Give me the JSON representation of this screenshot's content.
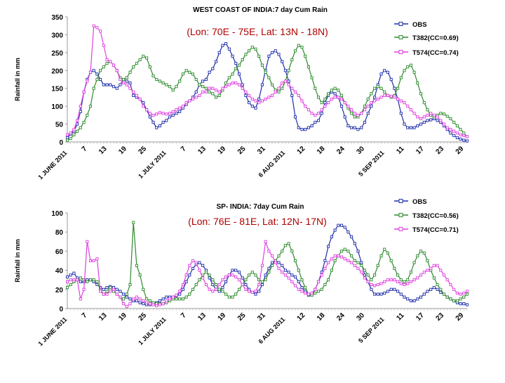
{
  "chart_data": [
    {
      "type": "line",
      "title": "WEST COAST OF INDIA:7 day Cum Rain",
      "subtitle": "(Lon: 70E - 75E, Lat: 13N - 18N)",
      "ylabel": "Rainfall in mm",
      "xlabel": "",
      "ylim": [
        0,
        350
      ],
      "yticks": [
        0,
        50,
        100,
        150,
        200,
        250,
        300,
        350
      ],
      "x": [
        0,
        1,
        2,
        3,
        4,
        5,
        6,
        7,
        8,
        9,
        10,
        11,
        12,
        13,
        14,
        15,
        16,
        17,
        18,
        19,
        20,
        21,
        22,
        23,
        24,
        25,
        26,
        27,
        28,
        29,
        30,
        31,
        32,
        33,
        34,
        35,
        36,
        37,
        38,
        39,
        40,
        41,
        42,
        43,
        44,
        45,
        46,
        47,
        48,
        49,
        50,
        51,
        52,
        53,
        54,
        55,
        56,
        57,
        58,
        59,
        60,
        61,
        62,
        63,
        64,
        65,
        66,
        67,
        68,
        69,
        70,
        71,
        72,
        73,
        74,
        75,
        76,
        77,
        78,
        79,
        80,
        81,
        82,
        83,
        84,
        85,
        86,
        87,
        88,
        89,
        90,
        91,
        92,
        93,
        94,
        95,
        96,
        97,
        98,
        99,
        100,
        101,
        102,
        103,
        104,
        105,
        106,
        107,
        108,
        109,
        110,
        111,
        112,
        113,
        114,
        115,
        116,
        117,
        118,
        119,
        120,
        121
      ],
      "xticks": [
        {
          "x": 0,
          "label": "1 JUNE 2011",
          "major": true
        },
        {
          "x": 6,
          "label": "7"
        },
        {
          "x": 12,
          "label": "13"
        },
        {
          "x": 18,
          "label": "19"
        },
        {
          "x": 24,
          "label": "25"
        },
        {
          "x": 30,
          "label": "1 JULY 2011",
          "major": true
        },
        {
          "x": 36,
          "label": "7"
        },
        {
          "x": 42,
          "label": "13"
        },
        {
          "x": 48,
          "label": "19"
        },
        {
          "x": 54,
          "label": "25"
        },
        {
          "x": 60,
          "label": "31"
        },
        {
          "x": 66,
          "label": "6 AUG 2011",
          "major": true
        },
        {
          "x": 72,
          "label": "12"
        },
        {
          "x": 78,
          "label": "18"
        },
        {
          "x": 84,
          "label": "24"
        },
        {
          "x": 90,
          "label": "30"
        },
        {
          "x": 96,
          "label": "5 SEP 2011",
          "major": true
        },
        {
          "x": 102,
          "label": "11"
        },
        {
          "x": 108,
          "label": "17"
        },
        {
          "x": 114,
          "label": "23"
        },
        {
          "x": 120,
          "label": "29"
        }
      ],
      "legend_position": "top-right",
      "grid": false,
      "series": [
        {
          "name": "OBS",
          "color": "#1f2fa8",
          "marker": "square",
          "values": [
            12,
            22,
            30,
            50,
            85,
            140,
            175,
            195,
            200,
            190,
            175,
            160,
            160,
            160,
            155,
            150,
            160,
            175,
            170,
            165,
            130,
            125,
            120,
            110,
            90,
            70,
            55,
            40,
            45,
            55,
            60,
            70,
            75,
            80,
            85,
            95,
            105,
            115,
            125,
            140,
            160,
            170,
            175,
            195,
            205,
            225,
            250,
            270,
            275,
            260,
            240,
            220,
            190,
            160,
            130,
            110,
            100,
            95,
            120,
            160,
            200,
            240,
            250,
            255,
            245,
            225,
            200,
            170,
            130,
            70,
            40,
            35,
            35,
            40,
            45,
            55,
            60,
            80,
            110,
            130,
            140,
            135,
            125,
            100,
            70,
            45,
            40,
            40,
            35,
            40,
            55,
            80,
            100,
            125,
            160,
            190,
            200,
            195,
            175,
            150,
            120,
            80,
            50,
            40,
            40,
            40,
            45,
            50,
            55,
            60,
            62,
            65,
            60,
            55,
            45,
            35,
            25,
            18,
            12,
            8,
            5,
            3
          ]
        },
        {
          "name": "T382(CC=0.69)",
          "color": "#2e8b2e",
          "marker": "square",
          "values": [
            5,
            10,
            20,
            30,
            40,
            55,
            75,
            100,
            150,
            175,
            200,
            210,
            220,
            225,
            215,
            200,
            180,
            175,
            180,
            195,
            210,
            220,
            230,
            240,
            235,
            210,
            185,
            175,
            170,
            165,
            160,
            155,
            145,
            155,
            170,
            190,
            200,
            195,
            190,
            175,
            160,
            155,
            150,
            140,
            135,
            125,
            130,
            145,
            165,
            180,
            190,
            205,
            215,
            230,
            245,
            255,
            265,
            260,
            240,
            215,
            195,
            180,
            160,
            145,
            140,
            150,
            170,
            200,
            230,
            255,
            270,
            265,
            240,
            210,
            180,
            150,
            125,
            110,
            120,
            135,
            145,
            150,
            145,
            130,
            110,
            95,
            80,
            70,
            70,
            80,
            100,
            120,
            135,
            150,
            155,
            150,
            140,
            130,
            125,
            130,
            150,
            180,
            200,
            210,
            215,
            195,
            165,
            135,
            110,
            90,
            75,
            70,
            75,
            80,
            78,
            72,
            65,
            55,
            45,
            35,
            25,
            15
          ]
        },
        {
          "name": "T574(CC=0.74)",
          "color": "#e040e0",
          "marker": "square",
          "values": [
            20,
            25,
            35,
            60,
            100,
            140,
            170,
            195,
            325,
            320,
            310,
            270,
            230,
            225,
            215,
            200,
            175,
            165,
            160,
            150,
            140,
            130,
            120,
            100,
            90,
            80,
            75,
            78,
            82,
            80,
            78,
            80,
            85,
            90,
            95,
            100,
            110,
            115,
            120,
            125,
            130,
            140,
            140,
            150,
            150,
            145,
            140,
            150,
            155,
            160,
            165,
            165,
            160,
            150,
            140,
            130,
            120,
            115,
            110,
            115,
            120,
            125,
            130,
            140,
            150,
            165,
            170,
            160,
            150,
            140,
            130,
            115,
            100,
            90,
            80,
            75,
            80,
            90,
            100,
            110,
            120,
            125,
            125,
            120,
            110,
            100,
            90,
            80,
            75,
            80,
            90,
            100,
            110,
            115,
            120,
            125,
            130,
            130,
            128,
            125,
            120,
            115,
            110,
            100,
            90,
            80,
            70,
            65,
            70,
            75,
            80,
            75,
            70,
            60,
            50,
            40,
            35,
            30,
            25,
            20,
            18,
            15
          ]
        }
      ]
    },
    {
      "type": "line",
      "title": "SP- INDIA: 7day Cum Rain",
      "subtitle": "(Lon: 76E - 81E, Lat: 12N- 17N)",
      "ylabel": "Rainfall in mm",
      "xlabel": "",
      "ylim": [
        0,
        100
      ],
      "yticks": [
        0,
        20,
        40,
        60,
        80,
        100
      ],
      "x": [
        0,
        1,
        2,
        3,
        4,
        5,
        6,
        7,
        8,
        9,
        10,
        11,
        12,
        13,
        14,
        15,
        16,
        17,
        18,
        19,
        20,
        21,
        22,
        23,
        24,
        25,
        26,
        27,
        28,
        29,
        30,
        31,
        32,
        33,
        34,
        35,
        36,
        37,
        38,
        39,
        40,
        41,
        42,
        43,
        44,
        45,
        46,
        47,
        48,
        49,
        50,
        51,
        52,
        53,
        54,
        55,
        56,
        57,
        58,
        59,
        60,
        61,
        62,
        63,
        64,
        65,
        66,
        67,
        68,
        69,
        70,
        71,
        72,
        73,
        74,
        75,
        76,
        77,
        78,
        79,
        80,
        81,
        82,
        83,
        84,
        85,
        86,
        87,
        88,
        89,
        90,
        91,
        92,
        93,
        94,
        95,
        96,
        97,
        98,
        99,
        100,
        101,
        102,
        103,
        104,
        105,
        106,
        107,
        108,
        109,
        110,
        111,
        112,
        113,
        114,
        115,
        116,
        117,
        118,
        119,
        120,
        121
      ],
      "xticks": [
        {
          "x": 0,
          "label": "1 JUNE 2011",
          "major": true
        },
        {
          "x": 6,
          "label": "7"
        },
        {
          "x": 12,
          "label": "13"
        },
        {
          "x": 18,
          "label": "19"
        },
        {
          "x": 24,
          "label": "25"
        },
        {
          "x": 30,
          "label": "1 JULY 2011",
          "major": true
        },
        {
          "x": 36,
          "label": "7"
        },
        {
          "x": 42,
          "label": "13"
        },
        {
          "x": 48,
          "label": "19"
        },
        {
          "x": 54,
          "label": "25"
        },
        {
          "x": 60,
          "label": "31"
        },
        {
          "x": 66,
          "label": "6 AUG 2011",
          "major": true
        },
        {
          "x": 72,
          "label": "12"
        },
        {
          "x": 78,
          "label": "18"
        },
        {
          "x": 84,
          "label": "24"
        },
        {
          "x": 90,
          "label": "30"
        },
        {
          "x": 96,
          "label": "5 SEP 2011",
          "major": true
        },
        {
          "x": 102,
          "label": "11"
        },
        {
          "x": 108,
          "label": "17"
        },
        {
          "x": 114,
          "label": "23"
        },
        {
          "x": 120,
          "label": "29"
        }
      ],
      "legend_position": "top-right",
      "grid": false,
      "series": [
        {
          "name": "OBS",
          "color": "#1f2fa8",
          "marker": "square",
          "values": [
            33,
            35,
            37,
            32,
            28,
            28,
            30,
            30,
            28,
            25,
            22,
            20,
            22,
            23,
            22,
            20,
            18,
            15,
            12,
            10,
            8,
            8,
            6,
            5,
            4,
            4,
            5,
            6,
            8,
            10,
            12,
            12,
            12,
            13,
            15,
            20,
            28,
            35,
            42,
            46,
            48,
            45,
            40,
            32,
            25,
            20,
            18,
            22,
            28,
            35,
            40,
            40,
            38,
            32,
            25,
            20,
            17,
            15,
            18,
            25,
            35,
            42,
            48,
            50,
            48,
            45,
            40,
            38,
            35,
            33,
            28,
            22,
            18,
            14,
            14,
            20,
            28,
            38,
            50,
            65,
            75,
            82,
            87,
            87,
            85,
            80,
            75,
            68,
            60,
            48,
            35,
            28,
            20,
            15,
            15,
            15,
            16,
            18,
            20,
            20,
            18,
            15,
            12,
            10,
            8,
            8,
            10,
            12,
            15,
            18,
            20,
            22,
            20,
            17,
            15,
            12,
            10,
            8,
            6,
            5,
            5,
            4
          ]
        },
        {
          "name": "T382(CC=0.56)",
          "color": "#2e8b2e",
          "marker": "square",
          "values": [
            22,
            25,
            28,
            30,
            32,
            30,
            28,
            30,
            30,
            28,
            20,
            15,
            18,
            22,
            18,
            15,
            12,
            10,
            15,
            25,
            90,
            45,
            35,
            20,
            10,
            8,
            6,
            5,
            5,
            5,
            6,
            8,
            10,
            10,
            10,
            10,
            12,
            15,
            20,
            25,
            30,
            35,
            38,
            35,
            30,
            25,
            20,
            18,
            15,
            12,
            12,
            15,
            20,
            25,
            30,
            35,
            38,
            35,
            30,
            28,
            30,
            38,
            45,
            50,
            55,
            60,
            66,
            68,
            60,
            50,
            40,
            30,
            22,
            15,
            14,
            16,
            18,
            20,
            25,
            30,
            40,
            50,
            55,
            60,
            62,
            60,
            55,
            50,
            48,
            45,
            40,
            35,
            30,
            35,
            45,
            55,
            62,
            58,
            50,
            42,
            35,
            30,
            28,
            30,
            38,
            48,
            55,
            60,
            58,
            50,
            40,
            32,
            25,
            20,
            15,
            12,
            10,
            8,
            8,
            10,
            12,
            15
          ]
        },
        {
          "name": "T574(CC=0.71)",
          "color": "#e040e0",
          "marker": "square",
          "values": [
            28,
            30,
            30,
            30,
            10,
            20,
            70,
            50,
            50,
            52,
            18,
            15,
            15,
            18,
            20,
            15,
            12,
            5,
            2,
            5,
            10,
            12,
            10,
            8,
            6,
            5,
            4,
            3,
            4,
            5,
            8,
            10,
            12,
            14,
            18,
            25,
            35,
            45,
            50,
            48,
            40,
            32,
            25,
            20,
            18,
            20,
            25,
            30,
            33,
            35,
            35,
            33,
            30,
            25,
            20,
            18,
            17,
            18,
            25,
            45,
            70,
            60,
            55,
            48,
            42,
            38,
            35,
            32,
            28,
            24,
            20,
            18,
            16,
            15,
            16,
            20,
            28,
            35,
            42,
            48,
            52,
            55,
            55,
            54,
            52,
            50,
            48,
            45,
            42,
            38,
            32,
            28,
            25,
            24,
            25,
            26,
            28,
            30,
            30,
            30,
            28,
            26,
            25,
            26,
            28,
            30,
            32,
            35,
            38,
            40,
            42,
            45,
            45,
            40,
            35,
            30,
            25,
            20,
            16,
            15,
            16,
            18
          ]
        }
      ]
    }
  ]
}
